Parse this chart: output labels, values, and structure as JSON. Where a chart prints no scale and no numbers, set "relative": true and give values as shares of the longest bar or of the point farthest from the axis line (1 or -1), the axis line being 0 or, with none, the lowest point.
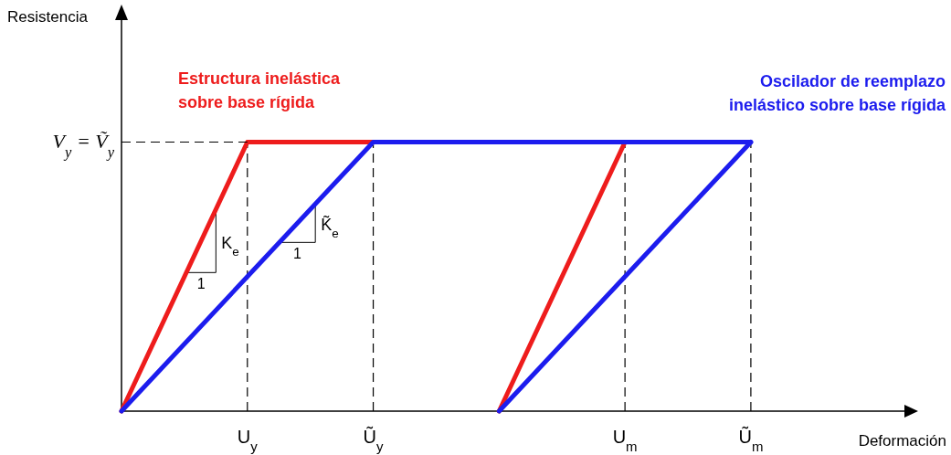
{
  "chart_data": {
    "type": "line",
    "relative": true,
    "xlabel": "Deformación",
    "categories": [
      null,
      "U$_{y}$",
      "Ũ$_{y}$",
      null,
      "U$_{m}$",
      "Ũ$_{m}$"
    ],
    "grid": "x",
    "legend": false,
    "line_style": "solid",
    "marker": "none",
    "ref_lines": [
      {
        "axis": "y",
        "value": 1,
        "label": "V$_{y}$ = Ṽ$_{y}$",
        "line_style": "dashed",
        "color": "#000000"
      }
    ],
    "series": [
      {
        "name": "Estructura inelástica sobre base rígida",
        "color": "#ee1c1c",
        "values": [
          0,
          1,
          1,
          null,
          null,
          null
        ]
      },
      {
        "color": "#ee1c1c",
        "values": [
          null,
          null,
          null,
          0,
          1,
          null
        ]
      },
      {
        "name": "Oscilador de reemplazo inelástico sobre base rígida",
        "color": "#1c1cee",
        "values": [
          0,
          0.5,
          1,
          1,
          1,
          1
        ]
      },
      {
        "color": "#1c1cee",
        "values": [
          null,
          null,
          null,
          0,
          0.5,
          1
        ]
      }
    ],
    "annotations": [
      "K$_{e}$",
      "1",
      "K̃$_{e}$",
      "1",
      "Resistencia"
    ]
  }
}
